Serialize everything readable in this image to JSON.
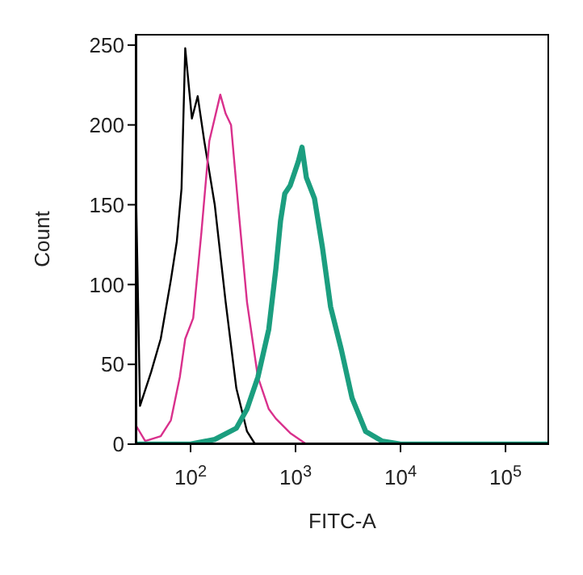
{
  "chart_data": {
    "type": "line",
    "xlabel": "FITC-A",
    "ylabel": "Count",
    "log": "x",
    "xlim": [
      30,
      260000
    ],
    "xticks": [
      {
        "value": 100,
        "label": "10$^{2}$"
      },
      {
        "value": 1000,
        "label": "10$^{3}$"
      },
      {
        "value": 10000,
        "label": "10$^{4}$"
      },
      {
        "value": 100000,
        "label": "10$^{5}$"
      }
    ],
    "ylim": [
      0,
      257
    ],
    "yticks": [
      0,
      50,
      100,
      150,
      200,
      250
    ],
    "marker": "none",
    "line_style": "solid",
    "series": [
      {
        "color": "#000000",
        "x": [
          30,
          33,
          42,
          52,
          65,
          74,
          82,
          89,
          103,
          117,
          135,
          170,
          216,
          273,
          345,
          412
        ],
        "values": [
          170,
          24,
          45,
          66,
          103,
          127,
          160,
          248,
          204,
          218,
          190,
          150,
          89,
          35,
          8,
          0
        ]
      },
      {
        "color": "#d9308c",
        "x": [
          30,
          37,
          52,
          65,
          79,
          89,
          106,
          127,
          151,
          192,
          216,
          243,
          290,
          345,
          438,
          556,
          650,
          889,
          1268,
          260000
        ],
        "values": [
          12,
          2,
          5,
          15,
          42,
          66,
          79,
          133,
          190,
          219,
          207,
          200,
          143,
          89,
          42,
          22,
          16,
          7,
          0,
          0
        ]
      },
      {
        "color": "#1b9e7f",
        "x": [
          30,
          100,
          170,
          273,
          345,
          438,
          556,
          650,
          720,
          790,
          889,
          1062,
          1153,
          1268,
          1514,
          1806,
          2158,
          2735,
          3451,
          4654,
          6637,
          10000,
          260000
        ],
        "values": [
          0,
          0,
          3,
          10,
          22,
          42,
          72,
          110,
          140,
          157,
          162,
          177,
          186,
          167,
          154,
          123,
          86,
          59,
          29,
          8,
          2,
          0,
          0
        ]
      }
    ]
  }
}
